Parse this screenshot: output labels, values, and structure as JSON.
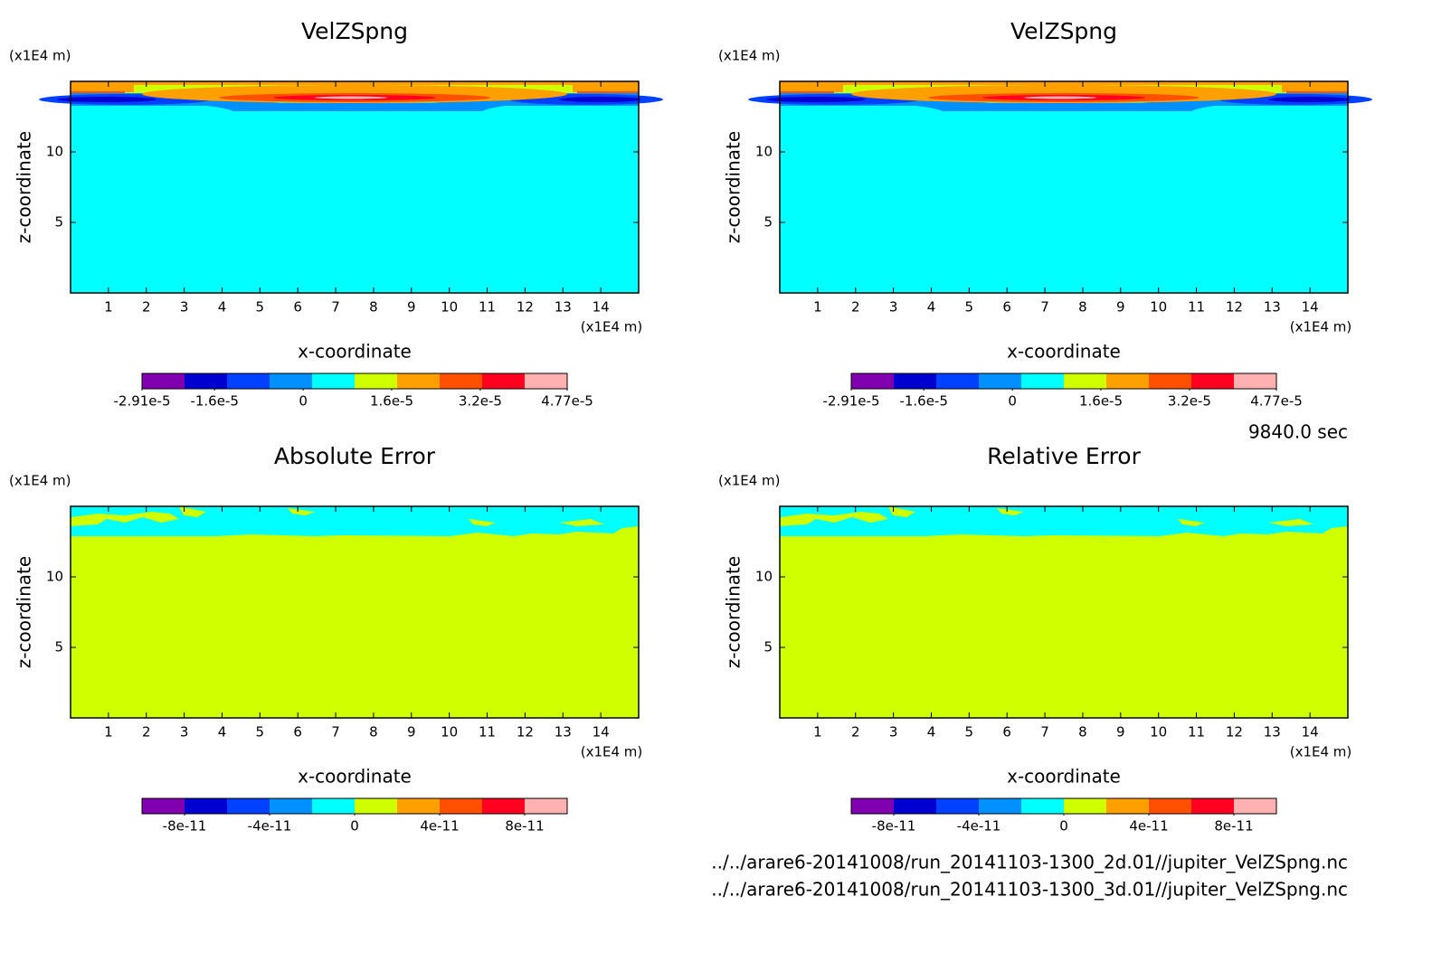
{
  "chart_data": [
    {
      "type": "contour",
      "title": "VelZSpng",
      "xlabel": "x-coordinate",
      "ylabel": "z-coordinate",
      "xunit": "(x1E4 m)",
      "yunit": "(x1E4 m)",
      "field": "velocity",
      "xlim": [
        0,
        15
      ],
      "ylim": [
        0,
        15
      ],
      "xticks": [
        1,
        2,
        3,
        4,
        5,
        6,
        7,
        8,
        9,
        10,
        11,
        12,
        13,
        14
      ],
      "yticks": [
        5,
        10
      ],
      "colorbar": {
        "colors": [
          "#8000b0",
          "#0000d0",
          "#0040ff",
          "#0090ff",
          "#00ffff",
          "#d0ff00",
          "#ffa000",
          "#ff5000",
          "#ff0020",
          "#ffb0b0"
        ],
        "clim": [
          -2.91e-05,
          4.77e-05
        ],
        "ticks": [
          {
            "value": -2.91e-05,
            "label": "-2.91e-5"
          },
          {
            "value": -1.6e-05,
            "label": "-1.6e-5"
          },
          0,
          {
            "value": 1.6e-05,
            "label": "1.6e-5"
          },
          {
            "value": 3.2e-05,
            "label": "3.2e-5"
          },
          {
            "value": 4.77e-05,
            "label": "4.77e-5"
          }
        ]
      }
    },
    {
      "type": "contour",
      "title": "VelZSpng",
      "xlabel": "x-coordinate",
      "ylabel": "z-coordinate",
      "xunit": "(x1E4 m)",
      "yunit": "(x1E4 m)",
      "field": "velocity",
      "xlim": [
        0,
        15
      ],
      "ylim": [
        0,
        15
      ],
      "xticks": [
        1,
        2,
        3,
        4,
        5,
        6,
        7,
        8,
        9,
        10,
        11,
        12,
        13,
        14
      ],
      "yticks": [
        5,
        10
      ],
      "colorbar": {
        "colors": [
          "#8000b0",
          "#0000d0",
          "#0040ff",
          "#0090ff",
          "#00ffff",
          "#d0ff00",
          "#ffa000",
          "#ff5000",
          "#ff0020",
          "#ffb0b0"
        ],
        "clim": [
          -2.91e-05,
          4.77e-05
        ],
        "ticks": [
          {
            "value": -2.91e-05,
            "label": "-2.91e-5"
          },
          {
            "value": -1.6e-05,
            "label": "-1.6e-5"
          },
          0,
          {
            "value": 1.6e-05,
            "label": "1.6e-5"
          },
          {
            "value": 3.2e-05,
            "label": "3.2e-5"
          },
          {
            "value": 4.77e-05,
            "label": "4.77e-5"
          }
        ]
      }
    },
    {
      "type": "contour",
      "title": "Absolute Error",
      "xlabel": "x-coordinate",
      "ylabel": "z-coordinate",
      "xunit": "(x1E4 m)",
      "yunit": "(x1E4 m)",
      "field": "error",
      "xlim": [
        0,
        15
      ],
      "ylim": [
        0,
        15
      ],
      "xticks": [
        1,
        2,
        3,
        4,
        5,
        6,
        7,
        8,
        9,
        10,
        11,
        12,
        13,
        14
      ],
      "yticks": [
        5,
        10
      ],
      "colorbar": {
        "colors": [
          "#8000b0",
          "#0000d0",
          "#0040ff",
          "#0090ff",
          "#00ffff",
          "#d0ff00",
          "#ffa000",
          "#ff5000",
          "#ff0020",
          "#ffb0b0"
        ],
        "clim": [
          -1e-10,
          1e-10
        ],
        "ticks": [
          {
            "value": -8e-11,
            "label": "-8e-11"
          },
          {
            "value": -4e-11,
            "label": "-4e-11"
          },
          0,
          {
            "value": 4e-11,
            "label": "4e-11"
          },
          {
            "value": 8e-11,
            "label": "8e-11"
          }
        ]
      }
    },
    {
      "type": "contour",
      "title": "Relative Error",
      "xlabel": "x-coordinate",
      "ylabel": "z-coordinate",
      "xunit": "(x1E4 m)",
      "yunit": "(x1E4 m)",
      "field": "error",
      "xlim": [
        0,
        15
      ],
      "ylim": [
        0,
        15
      ],
      "xticks": [
        1,
        2,
        3,
        4,
        5,
        6,
        7,
        8,
        9,
        10,
        11,
        12,
        13,
        14
      ],
      "yticks": [
        5,
        10
      ],
      "colorbar": {
        "colors": [
          "#8000b0",
          "#0000d0",
          "#0040ff",
          "#0090ff",
          "#00ffff",
          "#d0ff00",
          "#ffa000",
          "#ff5000",
          "#ff0020",
          "#ffb0b0"
        ],
        "clim": [
          -1e-10,
          1e-10
        ],
        "ticks": [
          {
            "value": -8e-11,
            "label": "-8e-11"
          },
          {
            "value": -4e-11,
            "label": "-4e-11"
          },
          0,
          {
            "value": 4e-11,
            "label": "4e-11"
          },
          {
            "value": 8e-11,
            "label": "8e-11"
          }
        ]
      }
    }
  ],
  "time": "9840.0 sec",
  "files": [
    "../../arare6-20141008/run_20141103-1300_2d.01//jupiter_VelZSpng.nc",
    "../../arare6-20141008/run_20141103-1300_3d.01//jupiter_VelZSpng.nc"
  ]
}
